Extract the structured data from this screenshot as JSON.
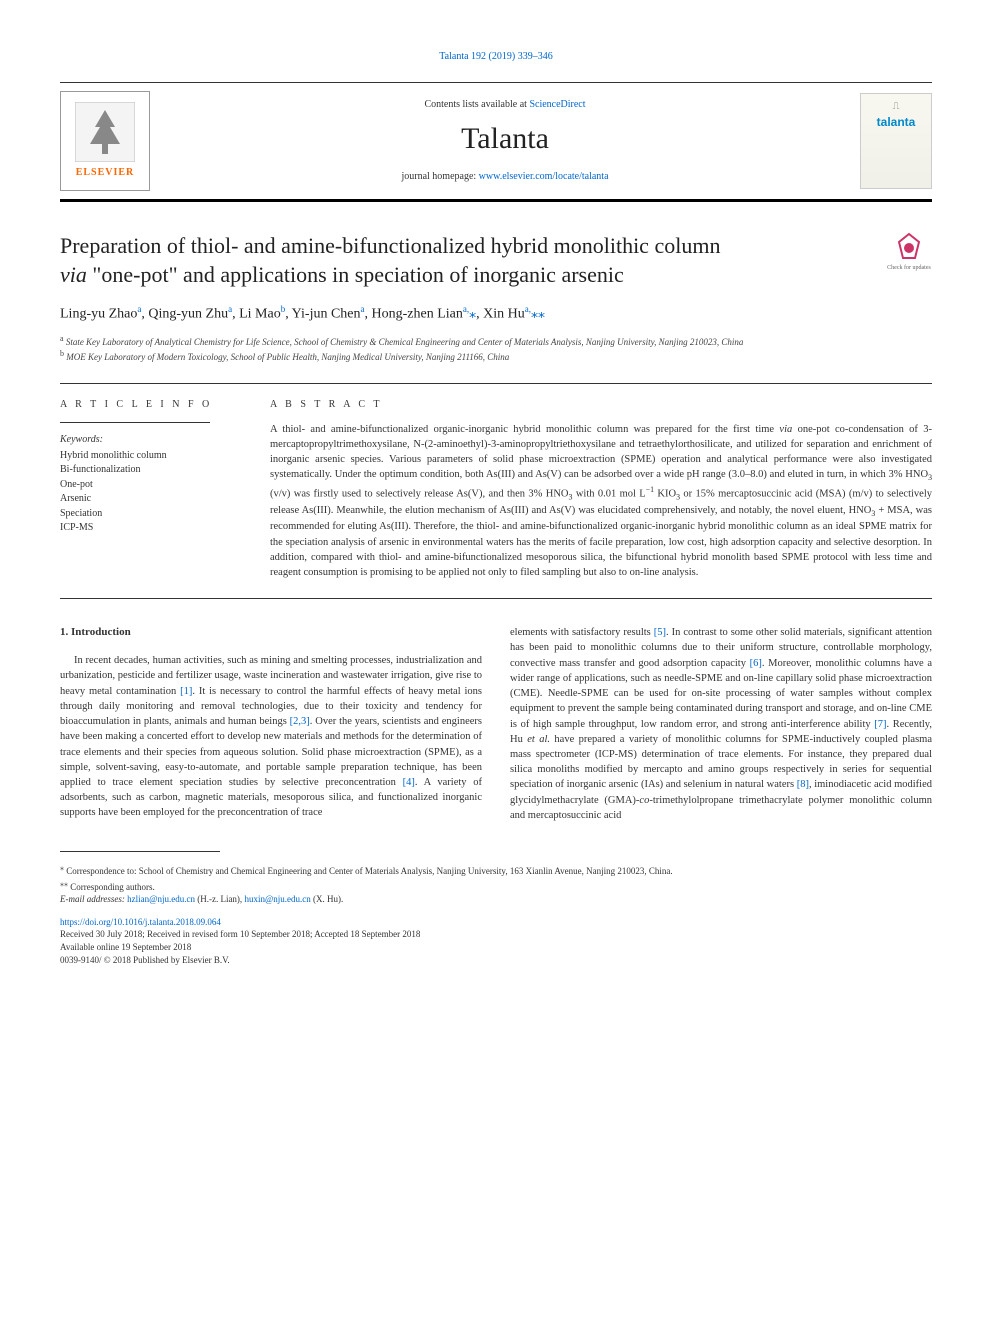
{
  "top_link": {
    "text": "Talanta 192 (2019) 339–346",
    "href": "#"
  },
  "header": {
    "contents_prefix": "Contents lists available at ",
    "contents_link": "ScienceDirect",
    "journal_name": "Talanta",
    "homepage_prefix": "journal homepage: ",
    "homepage_url": "www.elsevier.com/locate/talanta",
    "elsevier_brand": "ELSEVIER",
    "cover_title": "talanta"
  },
  "check_updates_label": "Check for updates",
  "title": {
    "line1": "Preparation of thiol- and amine-bifunctionalized hybrid monolithic column",
    "line2_italic": "via",
    "line2_rest": " \"one-pot\" and applications in speciation of inorganic arsenic"
  },
  "authors_html": "Ling-yu Zhao<sup>a</sup>, Qing-yun Zhu<sup>a</sup>, Li Mao<sup>b</sup>, Yi-jun Chen<sup>a</sup>, Hong-zhen Lian<sup>a,</sup><span class=\"star\">⁎</span>, Xin Hu<sup>a,</sup><span class=\"star\">⁎⁎</span>",
  "affiliations": {
    "a": "State Key Laboratory of Analytical Chemistry for Life Science, School of Chemistry & Chemical Engineering and Center of Materials Analysis, Nanjing University, Nanjing 210023, China",
    "b": "MOE Key Laboratory of Modern Toxicology, School of Public Health, Nanjing Medical University, Nanjing 211166, China"
  },
  "article_info_label": "A R T I C L E  I N F O",
  "abstract_label": "A B S T R A C T",
  "keywords_label": "Keywords:",
  "keywords": [
    "Hybrid monolithic column",
    "Bi-functionalization",
    "One-pot",
    "Arsenic",
    "Speciation",
    "ICP-MS"
  ],
  "abstract_html": "A thiol- and amine-bifunctionalized organic-inorganic hybrid monolithic column was prepared for the first time <span class=\"italic\">via</span> one-pot co-condensation of 3-mercaptopropyltrimethoxysilane, N-(2-aminoethyl)-3-aminopropyltriethoxysilane and tetraethylorthosilicate, and utilized for separation and enrichment of inorganic arsenic species. Various parameters of solid phase microextraction (SPME) operation and analytical performance were also investigated systematically. Under the optimum condition, both As(III) and As(V) can be adsorbed over a wide pH range (3.0–8.0) and eluted in turn, in which 3% HNO<sub>3</sub> (v/v) was firstly used to selectively release As(V), and then 3% HNO<sub>3</sub> with 0.01 mol L<sup class=\"chem\">−1</sup> KIO<sub>3</sub> or 15% mercaptosuccinic acid (MSA) (m/v) to selectively release As(III). Meanwhile, the elution mechanism of As(III) and As(V) was elucidated comprehensively, and notably, the novel eluent, HNO<sub>3</sub> + MSA, was recommended for eluting As(III). Therefore, the thiol- and amine-bifunctionalized organic-inorganic hybrid monolithic column as an ideal SPME matrix for the speciation analysis of arsenic in environmental waters has the merits of facile preparation, low cost, high adsorption capacity and selective desorption. In addition, compared with thiol- and amine-bifunctionalized mesoporous silica, the bifunctional hybrid monolith based SPME protocol with less time and reagent consumption is promising to be applied not only to filed sampling but also to on-line analysis.",
  "body": {
    "heading": "1. Introduction",
    "left_html": "In recent decades, human activities, such as mining and smelting processes, industrialization and urbanization, pesticide and fertilizer usage, waste incineration and wastewater irrigation, give rise to heavy metal contamination <a class=\"ref\" href=\"#\">[1]</a>. It is necessary to control the harmful effects of heavy metal ions through daily monitoring and removal technologies, due to their toxicity and tendency for bioaccumulation in plants, animals and human beings <a class=\"ref\" href=\"#\">[2,3]</a>. Over the years, scientists and engineers have been making a concerted effort to develop new materials and methods for the determination of trace elements and their species from aqueous solution. Solid phase microextraction (SPME), as a simple, solvent-saving, easy-to-automate, and portable sample preparation technique, has been applied to trace element speciation studies by selective preconcentration <a class=\"ref\" href=\"#\">[4]</a>. A variety of adsorbents, such as carbon, magnetic materials, mesoporous silica, and functionalized inorganic supports have been employed for the preconcentration of trace",
    "right_html": "elements with satisfactory results <a class=\"ref\" href=\"#\">[5]</a>. In contrast to some other solid materials, significant attention has been paid to monolithic columns due to their uniform structure, controllable morphology, convective mass transfer and good adsorption capacity <a class=\"ref\" href=\"#\">[6]</a>. Moreover, monolithic columns have a wider range of applications, such as needle-SPME and on-line capillary solid phase microextraction (CME). Needle-SPME can be used for on-site processing of water samples without complex equipment to prevent the sample being contaminated during transport and storage, and on-line CME is of high sample throughput, low random error, and strong anti-interference ability <a class=\"ref\" href=\"#\">[7]</a>. Recently, Hu <span class=\"italic\">et al.</span> have prepared a variety of monolithic columns for SPME-inductively coupled plasma mass spectrometer (ICP-MS) determination of trace elements. For instance, they prepared dual silica monoliths modified by mercapto and amino groups respectively in series for sequential speciation of inorganic arsenic (IAs) and selenium in natural waters <a class=\"ref\" href=\"#\">[8]</a>, iminodiacetic acid modified glycidylmethacrylate (GMA)-<span class=\"italic\">co</span>-trimethylolpropane trimethacrylate polymer monolithic column and mercaptosuccinic acid"
  },
  "footnotes": {
    "corr1": "Correspondence to: School of Chemistry and Chemical Engineering and Center of Materials Analysis, Nanjing University, 163 Xianlin Avenue, Nanjing 210023, China.",
    "corr2": "Corresponding authors.",
    "email_label": "E-mail addresses:",
    "email1": "hzlian@nju.edu.cn",
    "email1_name": "(H.-z. Lian),",
    "email2": "huxin@nju.edu.cn",
    "email2_name": "(X. Hu)."
  },
  "doi": "https://doi.org/10.1016/j.talanta.2018.09.064",
  "history": {
    "received": "Received 30 July 2018; Received in revised form 10 September 2018; Accepted 18 September 2018",
    "online": "Available online 19 September 2018",
    "copyright": "0039-9140/ © 2018 Published by Elsevier B.V."
  },
  "colors": {
    "link": "#0066cc",
    "text": "#333333",
    "elsevier_orange": "#ff6600",
    "talanta_blue": "#0088cc"
  }
}
